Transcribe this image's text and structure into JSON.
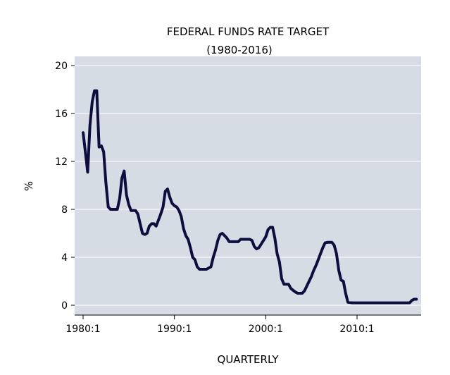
{
  "chart_data": {
    "type": "line",
    "title": "FEDERAL FUNDS RATE TARGET",
    "subtitle": "(1980-2016)",
    "xlabel": "QUARTERLY",
    "ylabel": "%",
    "ylim": [
      0,
      20
    ],
    "xlim": [
      1980.0,
      2016.5
    ],
    "y_ticks": [
      0,
      4,
      8,
      12,
      16,
      20
    ],
    "x_ticks": [
      {
        "value": 1980.0,
        "label": "1980:1"
      },
      {
        "value": 1990.0,
        "label": "1990:1"
      },
      {
        "value": 2000.0,
        "label": "2000:1"
      },
      {
        "value": 2010.0,
        "label": "2010:1"
      }
    ],
    "grid": true,
    "legend": "none",
    "colors": {
      "plot_bg": "#d6dce4",
      "grid": "#ffffff",
      "line": "#0d0d3f"
    },
    "series": [
      {
        "x": [
          1980.0,
          1980.25,
          1980.5,
          1980.75,
          1981.0,
          1981.25,
          1981.5,
          1981.75,
          1982.0,
          1982.25,
          1982.5,
          1982.75,
          1983.0,
          1983.25,
          1983.5,
          1983.75,
          1984.0,
          1984.25,
          1984.5,
          1984.75,
          1985.0,
          1985.25,
          1985.5,
          1985.75,
          1986.0,
          1986.25,
          1986.5,
          1986.75,
          1987.0,
          1987.25,
          1987.5,
          1987.75,
          1988.0,
          1988.25,
          1988.5,
          1988.75,
          1989.0,
          1989.25,
          1989.5,
          1989.75,
          1990.0,
          1990.25,
          1990.5,
          1990.75,
          1991.0,
          1991.25,
          1991.5,
          1991.75,
          1992.0,
          1992.25,
          1992.5,
          1992.75,
          1993.0,
          1993.5,
          1994.0,
          1994.25,
          1994.5,
          1994.75,
          1995.0,
          1995.25,
          1995.5,
          1995.75,
          1996.0,
          1996.5,
          1997.0,
          1997.25,
          1997.75,
          1998.0,
          1998.25,
          1998.5,
          1998.75,
          1999.0,
          1999.25,
          1999.5,
          1999.75,
          2000.0,
          2000.25,
          2000.5,
          2000.75,
          2001.0,
          2001.25,
          2001.5,
          2001.75,
          2002.0,
          2002.5,
          2002.75,
          2003.0,
          2003.25,
          2003.5,
          2004.0,
          2004.25,
          2004.5,
          2004.75,
          2005.0,
          2005.25,
          2005.5,
          2005.75,
          2006.0,
          2006.25,
          2006.5,
          2006.75,
          2007.0,
          2007.25,
          2007.5,
          2007.75,
          2008.0,
          2008.25,
          2008.5,
          2008.75,
          2009.0,
          2009.5,
          2010.0,
          2011.0,
          2012.0,
          2013.0,
          2014.0,
          2015.0,
          2015.75,
          2016.0,
          2016.25,
          2016.5
        ],
        "y": [
          14.4,
          12.8,
          11.1,
          15.0,
          17.0,
          17.9,
          17.9,
          13.2,
          13.3,
          12.8,
          10.2,
          8.2,
          8.0,
          8.0,
          8.0,
          8.0,
          8.9,
          10.6,
          11.2,
          9.2,
          8.4,
          7.9,
          7.9,
          7.9,
          7.6,
          6.8,
          6.0,
          5.9,
          6.0,
          6.6,
          6.8,
          6.8,
          6.6,
          7.1,
          7.6,
          8.2,
          9.5,
          9.7,
          9.0,
          8.5,
          8.3,
          8.2,
          7.9,
          7.4,
          6.4,
          5.8,
          5.5,
          4.8,
          4.0,
          3.8,
          3.2,
          3.0,
          3.0,
          3.0,
          3.2,
          4.0,
          4.6,
          5.4,
          5.9,
          6.0,
          5.8,
          5.6,
          5.3,
          5.3,
          5.3,
          5.5,
          5.5,
          5.5,
          5.5,
          5.4,
          4.9,
          4.7,
          4.8,
          5.1,
          5.4,
          5.7,
          6.3,
          6.5,
          6.5,
          5.6,
          4.3,
          3.6,
          2.2,
          1.75,
          1.75,
          1.4,
          1.25,
          1.1,
          1.0,
          1.0,
          1.2,
          1.6,
          2.0,
          2.4,
          2.9,
          3.3,
          3.8,
          4.3,
          4.8,
          5.2,
          5.25,
          5.25,
          5.25,
          5.0,
          4.3,
          2.9,
          2.1,
          2.0,
          1.0,
          0.25,
          0.2,
          0.2,
          0.2,
          0.2,
          0.2,
          0.2,
          0.2,
          0.2,
          0.4,
          0.5,
          0.5
        ]
      }
    ]
  }
}
